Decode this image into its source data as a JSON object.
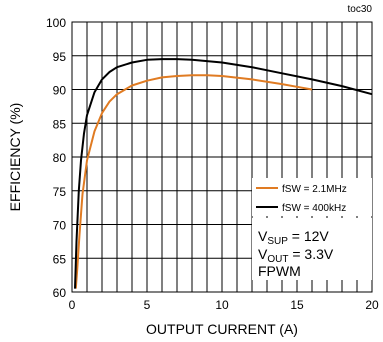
{
  "chart_data": {
    "type": "line",
    "tag": "toc30",
    "xlabel": "OUTPUT CURRENT (A)",
    "ylabel": "EFFICIENCY (%)",
    "xlim": [
      0,
      20
    ],
    "ylim": [
      60,
      100
    ],
    "x_ticks": [
      "0",
      "5",
      "10",
      "15",
      "20"
    ],
    "y_ticks": [
      "60",
      "65",
      "70",
      "75",
      "80",
      "85",
      "90",
      "95",
      "100"
    ],
    "grid": true,
    "legend_position": "bottom-right",
    "annotation": {
      "line1_main": "V",
      "line1_sub": "SUP",
      "line1_rest": " = 12V",
      "line2_main": "V",
      "line2_sub": "OUT",
      "line2_rest": " = 3.3V",
      "line3": "FPWM"
    },
    "series": [
      {
        "name": "fSW = 2.1MHz",
        "color": "#e07b22",
        "x": [
          0.25,
          0.35,
          0.5,
          0.7,
          1.0,
          1.5,
          2.0,
          2.5,
          3.0,
          4.0,
          5.0,
          6.0,
          7.0,
          8.0,
          9.0,
          10.0,
          12.0,
          14.0,
          15.0,
          16.0
        ],
        "y": [
          60.5,
          63.5,
          68.5,
          74.5,
          79.5,
          83.8,
          86.5,
          88.2,
          89.3,
          90.6,
          91.3,
          91.8,
          92.0,
          92.1,
          92.1,
          92.0,
          91.5,
          90.8,
          90.4,
          90.0
        ]
      },
      {
        "name": "fSW = 400kHz",
        "color": "#000000",
        "x": [
          0.2,
          0.3,
          0.45,
          0.6,
          0.8,
          1.0,
          1.5,
          2.0,
          2.5,
          3.0,
          4.0,
          5.0,
          6.0,
          7.0,
          8.0,
          10.0,
          12.0,
          14.0,
          16.0,
          18.0,
          20.0
        ],
        "y": [
          60.5,
          67.5,
          75.0,
          79.5,
          83.5,
          86.2,
          89.6,
          91.5,
          92.6,
          93.3,
          94.0,
          94.4,
          94.5,
          94.5,
          94.4,
          94.0,
          93.3,
          92.4,
          91.5,
          90.5,
          89.3
        ]
      }
    ]
  }
}
